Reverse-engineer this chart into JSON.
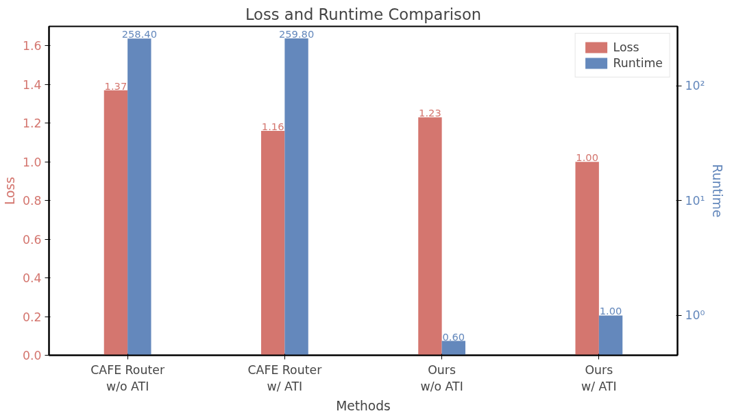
{
  "chart_data": {
    "type": "bar",
    "title": "Loss and Runtime Comparison",
    "xlabel": "Methods",
    "ylabel": "Loss",
    "y2label": "Runtime",
    "categories": [
      "CAFE Router\nw/o ATI",
      "CAFE Router\nw/ ATI",
      "Ours\nw/o ATI",
      "Ours\nw/ ATI"
    ],
    "series": [
      {
        "name": "Loss",
        "color": "#d4766f",
        "values": [
          1.37,
          1.16,
          1.23,
          1.0
        ],
        "value_labels": [
          "1.37",
          "1.16",
          "1.23",
          "1.00"
        ]
      },
      {
        "name": "Runtime",
        "color": "#6488bc",
        "values": [
          258.4,
          259.8,
          0.6,
          1.0
        ],
        "value_labels": [
          "258.40",
          "259.80",
          "0.60",
          "1.00"
        ],
        "axis": "y2"
      }
    ],
    "ylim": [
      0,
      1.7
    ],
    "yticks": [
      {
        "value": 0,
        "label": "0.0"
      },
      0.2,
      0.4,
      0.6,
      0.8,
      {
        "value": 1,
        "label": "1.0"
      },
      1.2,
      1.4,
      1.6
    ],
    "y2lim": [
      0.45,
      330
    ],
    "y2ticks": [
      {
        "value": 1,
        "label": "10⁰"
      },
      {
        "value": 10,
        "label": "10¹"
      },
      {
        "value": 100,
        "label": "10²"
      }
    ],
    "log": "y2",
    "legend": "top right",
    "grid": false
  }
}
